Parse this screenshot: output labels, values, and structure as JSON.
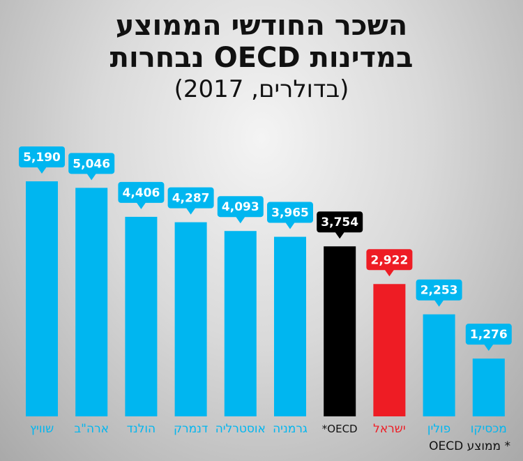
{
  "title": {
    "line1": "השכר החודשי הממוצע",
    "line2": "במדינות OECD נבחרות",
    "subtitle": "(בדולרים, 2017)"
  },
  "footnote": "* ממוצע OECD",
  "colors": {
    "default_bar": "#00b6f0",
    "oecd_bar": "#000000",
    "israel_bar": "#ee1c24",
    "default_label": "#00b6f0"
  },
  "chart_data": {
    "type": "bar",
    "categories": [
      "שוויץ",
      "ארה\"ב",
      "הולנד",
      "דנמרק",
      "אוסטרליה",
      "גרמניה",
      "OECD*",
      "ישראל",
      "פולין",
      "מכסיקו"
    ],
    "values": [
      5190,
      5046,
      4406,
      4287,
      4093,
      3965,
      3754,
      2922,
      2253,
      1276
    ],
    "value_labels": [
      "5,190",
      "5,046",
      "4,406",
      "4,287",
      "4,093",
      "3,965",
      "3,754",
      "2,922",
      "2,253",
      "1,276"
    ],
    "highlight": {
      "OECD*": "oecd",
      "ישראל": "israel"
    },
    "title": "השכר החודשי הממוצע במדינות OECD נבחרות",
    "subtitle": "(בדולרים, 2017)",
    "xlabel": "",
    "ylabel": "",
    "ylim": [
      0,
      5190
    ],
    "grid": false,
    "legend": "none"
  }
}
